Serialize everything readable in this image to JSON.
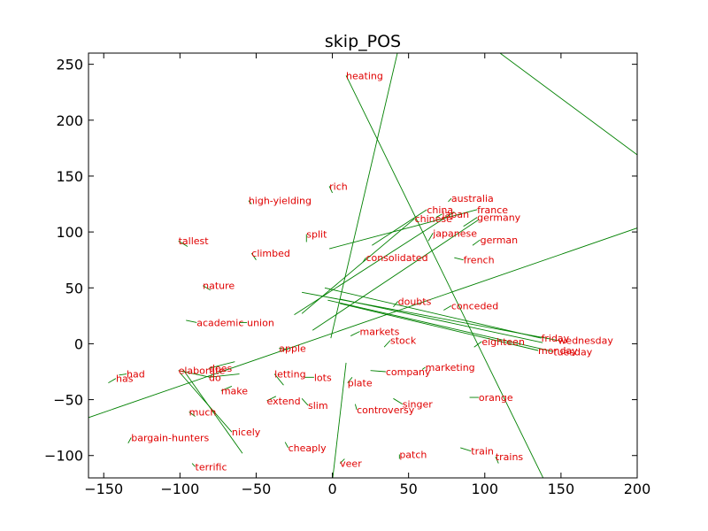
{
  "chart_data": {
    "type": "scatter",
    "title": "skip_POS",
    "xlabel": "",
    "ylabel": "",
    "xlim": [
      -160,
      200
    ],
    "ylim": [
      -120,
      260
    ],
    "xticks": [
      -150,
      -100,
      -50,
      0,
      50,
      100,
      150,
      200
    ],
    "yticks": [
      -100,
      -50,
      0,
      50,
      100,
      150,
      200,
      250
    ],
    "xtick_labels": [
      "−150",
      "−100",
      "−50",
      "0",
      "50",
      "100",
      "150",
      "200"
    ],
    "ytick_labels": [
      "−100",
      "−50",
      "0",
      "50",
      "100",
      "150",
      "200",
      "250"
    ],
    "grid": false,
    "legend": "none",
    "colors": {
      "line": "#008000",
      "label": "#e00000",
      "axes": "#000000"
    },
    "points": [
      {
        "word": "heating",
        "x": 9,
        "y": 240,
        "x2": 139,
        "y2": -122
      },
      {
        "word": "rich",
        "x": -2,
        "y": 141,
        "x2": 0,
        "y2": 135
      },
      {
        "word": "high-yielding",
        "x": -55,
        "y": 128,
        "x2": -53,
        "y2": 125
      },
      {
        "word": "australia",
        "x": 78,
        "y": 130,
        "x2": 76,
        "y2": 127
      },
      {
        "word": "china",
        "x": 62,
        "y": 120,
        "x2": 26,
        "y2": 88
      },
      {
        "word": "japan",
        "x": 72,
        "y": 116,
        "x2": 68,
        "y2": 113
      },
      {
        "word": "france",
        "x": 95,
        "y": 120,
        "x2": -2,
        "y2": 85
      },
      {
        "word": "chinese",
        "x": 54,
        "y": 112,
        "x2": -20,
        "y2": 27
      },
      {
        "word": "germany",
        "x": 95,
        "y": 113,
        "x2": 86,
        "y2": 105
      },
      {
        "word": "japanese",
        "x": 66,
        "y": 99,
        "x2": 63,
        "y2": 92
      },
      {
        "word": "split",
        "x": -17,
        "y": 98,
        "x2": -17,
        "y2": 91
      },
      {
        "word": "tallest",
        "x": -101,
        "y": 92,
        "x2": -95,
        "y2": 87
      },
      {
        "word": "german",
        "x": 97,
        "y": 93,
        "x2": 92,
        "y2": 88
      },
      {
        "word": "climbed",
        "x": -53,
        "y": 81,
        "x2": -50,
        "y2": 75
      },
      {
        "word": "consolidated",
        "x": 22,
        "y": 77,
        "x2": 20,
        "y2": 73
      },
      {
        "word": "french",
        "x": 86,
        "y": 75,
        "x2": 80,
        "y2": 77
      },
      {
        "word": "nature",
        "x": -85,
        "y": 52,
        "x2": -80,
        "y2": 48
      },
      {
        "word": "doubts",
        "x": 43,
        "y": 38,
        "x2": 40,
        "y2": 33
      },
      {
        "word": "conceded",
        "x": 78,
        "y": 34,
        "x2": 73,
        "y2": 30
      },
      {
        "word": "academic",
        "x": -89,
        "y": 19,
        "x2": -96,
        "y2": 21
      },
      {
        "word": "union",
        "x": -56,
        "y": 19,
        "x2": -61,
        "y2": 19
      },
      {
        "word": "markets",
        "x": 18,
        "y": 11,
        "x2": 12,
        "y2": 7
      },
      {
        "word": "stock",
        "x": 38,
        "y": 3,
        "x2": 34,
        "y2": -3
      },
      {
        "word": "friday",
        "x": 137,
        "y": 5,
        "x2": -5,
        "y2": 50
      },
      {
        "word": "wednesday",
        "x": 148,
        "y": 3,
        "x2": -20,
        "y2": 46
      },
      {
        "word": "eighteen",
        "x": 98,
        "y": 2,
        "x2": 93,
        "y2": -3
      },
      {
        "word": "apple",
        "x": -35,
        "y": -4,
        "x2": -29,
        "y2": -5
      },
      {
        "word": "monday",
        "x": 135,
        "y": -6,
        "x2": 5,
        "y2": 36
      },
      {
        "word": "tuesday",
        "x": 145,
        "y": -7,
        "x2": -3,
        "y2": 39
      },
      {
        "word": "elaborate",
        "x": -101,
        "y": -24,
        "x2": -80,
        "y2": -30
      },
      {
        "word": "does",
        "x": -81,
        "y": -22,
        "x2": -64,
        "y2": -16
      },
      {
        "word": "company",
        "x": 35,
        "y": -25,
        "x2": 25,
        "y2": -24
      },
      {
        "word": "marketing",
        "x": 61,
        "y": -21,
        "x2": 59,
        "y2": -23
      },
      {
        "word": "had",
        "x": -135,
        "y": -27,
        "x2": -140,
        "y2": -28
      },
      {
        "word": "has",
        "x": -142,
        "y": -31,
        "x2": -147,
        "y2": -35
      },
      {
        "word": "letting",
        "x": -38,
        "y": -27,
        "x2": -32,
        "y2": -37
      },
      {
        "word": "lots",
        "x": -12,
        "y": -30,
        "x2": -18,
        "y2": -30
      },
      {
        "word": "do",
        "x": -81,
        "y": -30,
        "x2": -61,
        "y2": -27
      },
      {
        "word": "plate",
        "x": 10,
        "y": -35,
        "x2": 13,
        "y2": -30
      },
      {
        "word": "make",
        "x": -73,
        "y": -42,
        "x2": -66,
        "y2": -38
      },
      {
        "word": "orange",
        "x": 96,
        "y": -48,
        "x2": 90,
        "y2": -48
      },
      {
        "word": "extend",
        "x": -43,
        "y": -51,
        "x2": -37,
        "y2": -47
      },
      {
        "word": "slim",
        "x": -16,
        "y": -55,
        "x2": -20,
        "y2": -49
      },
      {
        "word": "singer",
        "x": 46,
        "y": -54,
        "x2": 40,
        "y2": -49
      },
      {
        "word": "controversy",
        "x": 16,
        "y": -59,
        "x2": 15,
        "y2": -54
      },
      {
        "word": "much",
        "x": -94,
        "y": -61,
        "x2": -90,
        "y2": -65
      },
      {
        "word": "nicely",
        "x": -66,
        "y": -79,
        "x2": -100,
        "y2": -26
      },
      {
        "word": "bargain-hunters",
        "x": -132,
        "y": -84,
        "x2": -134,
        "y2": -89
      },
      {
        "word": "cheaply",
        "x": -29,
        "y": -93,
        "x2": -31,
        "y2": -88
      },
      {
        "word": "train",
        "x": 91,
        "y": -96,
        "x2": 84,
        "y2": -93
      },
      {
        "word": "patch",
        "x": 44,
        "y": -99,
        "x2": 44,
        "y2": -103
      },
      {
        "word": "trains",
        "x": 107,
        "y": -101,
        "x2": 109,
        "y2": -107
      },
      {
        "word": "veer",
        "x": 5,
        "y": -107,
        "x2": 8,
        "y2": -103
      },
      {
        "word": "terrific",
        "x": -90,
        "y": -110,
        "x2": -92,
        "y2": -107
      }
    ],
    "extra_lines": [
      {
        "x1": 108,
        "y1": 262,
        "x2": 201,
        "y2": 168
      },
      {
        "x1": 43,
        "y1": 262,
        "x2": -1,
        "y2": 5
      },
      {
        "x1": -162,
        "y1": -67,
        "x2": 201,
        "y2": 104
      },
      {
        "x1": -98,
        "y1": -23,
        "x2": -59,
        "y2": -98
      },
      {
        "x1": 9,
        "y1": -17,
        "x2": 0,
        "y2": -123
      },
      {
        "x1": 80,
        "y1": 118,
        "x2": -25,
        "y2": 26
      },
      {
        "x1": 96,
        "y1": 111,
        "x2": -13,
        "y2": 12
      },
      {
        "x1": 138,
        "y1": 1,
        "x2": 5,
        "y2": 40
      }
    ]
  }
}
